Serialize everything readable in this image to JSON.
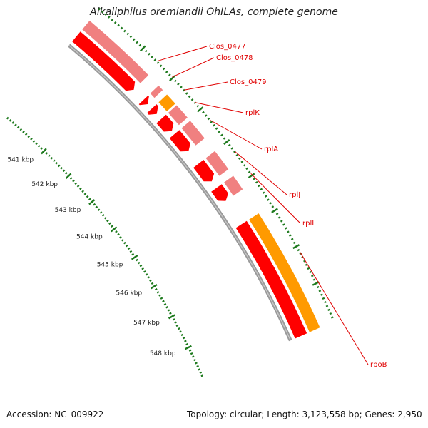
{
  "map": {
    "title": "Alkaliphilus oremlandii OhILAs, complete genome",
    "accession": "Accession: NC_009922",
    "summary": "Topology: circular; Length: 3,123,558 bp; Genes: 2,950",
    "colors": {
      "backbone": "#9a9a9a",
      "ticks": "#1e7a1e",
      "gene_label": "#e00000",
      "leader_line": "#e00000",
      "scale_text": "#222222"
    },
    "scale_ticks": [
      {
        "label": "541 kbp",
        "kbp": 541
      },
      {
        "label": "542 kbp",
        "kbp": 542
      },
      {
        "label": "543 kbp",
        "kbp": 543
      },
      {
        "label": "544 kbp",
        "kbp": 544
      },
      {
        "label": "545 kbp",
        "kbp": 545
      },
      {
        "label": "546 kbp",
        "kbp": 546
      },
      {
        "label": "547 kbp",
        "kbp": 547
      },
      {
        "label": "548 kbp",
        "kbp": 548
      }
    ],
    "gene_labels": [
      {
        "name": "Clos_0477"
      },
      {
        "name": "Clos_0478"
      },
      {
        "name": "Clos_0479"
      },
      {
        "name": "rplK"
      },
      {
        "name": "rplA"
      },
      {
        "name": "rplJ"
      },
      {
        "name": "rplL"
      },
      {
        "name": "rpoB"
      }
    ],
    "track_colors": {
      "cds": "#ff0000",
      "protein": "#f08080",
      "highlight": "#ff9a00"
    }
  }
}
